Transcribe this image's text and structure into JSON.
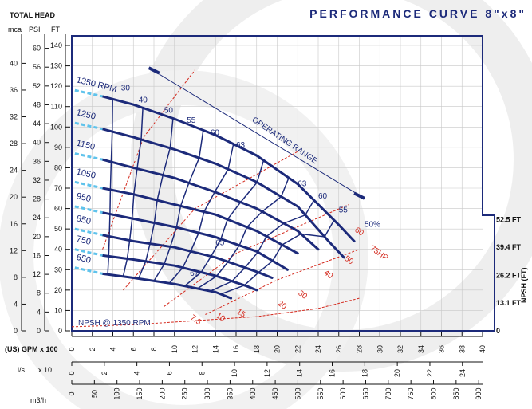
{
  "header": {
    "total_head": "TOTAL HEAD",
    "title": "PERFORMANCE CURVE 8\"x8\""
  },
  "units": {
    "mca": "mca",
    "psi": "PSI",
    "ft": "FT",
    "gpm": "(US) GPM x 100",
    "ls": "l/s",
    "ls_mult": "x 10",
    "m3h": "m3/h",
    "npsh": "NPSH (FT)"
  },
  "colors": {
    "navy": "#1c2a7a",
    "red": "#d42a1e",
    "cyan": "#5fc3ec",
    "background": "#ffffff",
    "watermark": "#eeeeee"
  },
  "chart_data": {
    "type": "line",
    "xlim": [
      0,
      40
    ],
    "ylim": [
      0,
      145
    ],
    "ft_ticks": [
      0,
      10,
      20,
      30,
      40,
      50,
      60,
      70,
      80,
      90,
      100,
      110,
      120,
      130,
      140
    ],
    "psi_ticks": [
      0,
      4,
      8,
      12,
      16,
      20,
      24,
      28,
      32,
      36,
      40,
      44,
      48,
      52,
      56,
      60
    ],
    "mca_ticks": [
      0,
      4,
      8,
      12,
      16,
      20,
      24,
      28,
      32,
      36,
      40
    ],
    "gpm_ticks": [
      0,
      2,
      4,
      6,
      8,
      10,
      12,
      14,
      16,
      18,
      20,
      22,
      24,
      26,
      28,
      30,
      32,
      34,
      36,
      38,
      40
    ],
    "ls_ticks": [
      0,
      2,
      4,
      6,
      8,
      10,
      12,
      14,
      16,
      18,
      20,
      22,
      24
    ],
    "m3h_ticks": [
      0,
      50,
      100,
      150,
      200,
      250,
      300,
      350,
      400,
      450,
      500,
      550,
      600,
      650,
      700,
      750,
      800,
      850,
      900
    ],
    "npsh_ticks": [
      {
        "label": "52.5 FT",
        "ft": 52.5
      },
      {
        "label": "39.4 FT",
        "ft": 39.4
      },
      {
        "label": "26.2 FT",
        "ft": 26.2
      },
      {
        "label": "13.1 FT",
        "ft": 13.1
      },
      {
        "label": "0",
        "ft": 0
      }
    ],
    "speed_curves": [
      {
        "name": "1350 RPM",
        "x": [
          3,
          6,
          10,
          14,
          18,
          22,
          26,
          27.5
        ],
        "y": [
          115,
          111,
          104,
          96,
          86,
          72,
          52,
          44
        ]
      },
      {
        "name": "1250",
        "x": [
          3,
          6,
          10,
          14,
          18,
          22,
          25,
          26.5
        ],
        "y": [
          99,
          95,
          89,
          82,
          73,
          61,
          44,
          36
        ]
      },
      {
        "name": "1150",
        "x": [
          3,
          6,
          10,
          14,
          18,
          22,
          24
        ],
        "y": [
          84,
          80,
          75,
          68,
          60,
          49,
          40
        ]
      },
      {
        "name": "1050",
        "x": [
          3,
          6,
          10,
          14,
          18,
          22
        ],
        "y": [
          70,
          67,
          62,
          57,
          49,
          38
        ]
      },
      {
        "name": "950",
        "x": [
          3,
          6,
          10,
          14,
          18,
          20,
          21
        ],
        "y": [
          58,
          55,
          51,
          46,
          39,
          33,
          30
        ]
      },
      {
        "name": "850",
        "x": [
          3,
          6,
          10,
          14,
          18,
          19.5
        ],
        "y": [
          47,
          44,
          41,
          36,
          29,
          26
        ]
      },
      {
        "name": "750",
        "x": [
          3,
          6,
          10,
          14,
          17,
          18
        ],
        "y": [
          37,
          35,
          32,
          27,
          22,
          20
        ]
      },
      {
        "name": "650",
        "x": [
          3,
          6,
          10,
          14,
          15.5
        ],
        "y": [
          28,
          26,
          23,
          19,
          16
        ]
      }
    ],
    "efficiency_labels": [
      "30",
      "40",
      "50",
      "55",
      "60",
      "63",
      "65",
      "67",
      "63",
      "60",
      "55",
      "50%"
    ],
    "power_labels": [
      "75HP",
      "60",
      "50",
      "40",
      "30",
      "20",
      "15",
      "10",
      "7.5"
    ],
    "operating_range": {
      "label": "OPERATING RANGE",
      "x": [
        7.5,
        28.5
      ],
      "y": [
        129,
        65
      ]
    },
    "npsh_curve": {
      "label": "NPSH @ 1350 RPM",
      "x": [
        0,
        6,
        12,
        18,
        24,
        28
      ],
      "y": [
        2,
        3,
        5,
        7,
        11,
        16
      ]
    }
  }
}
